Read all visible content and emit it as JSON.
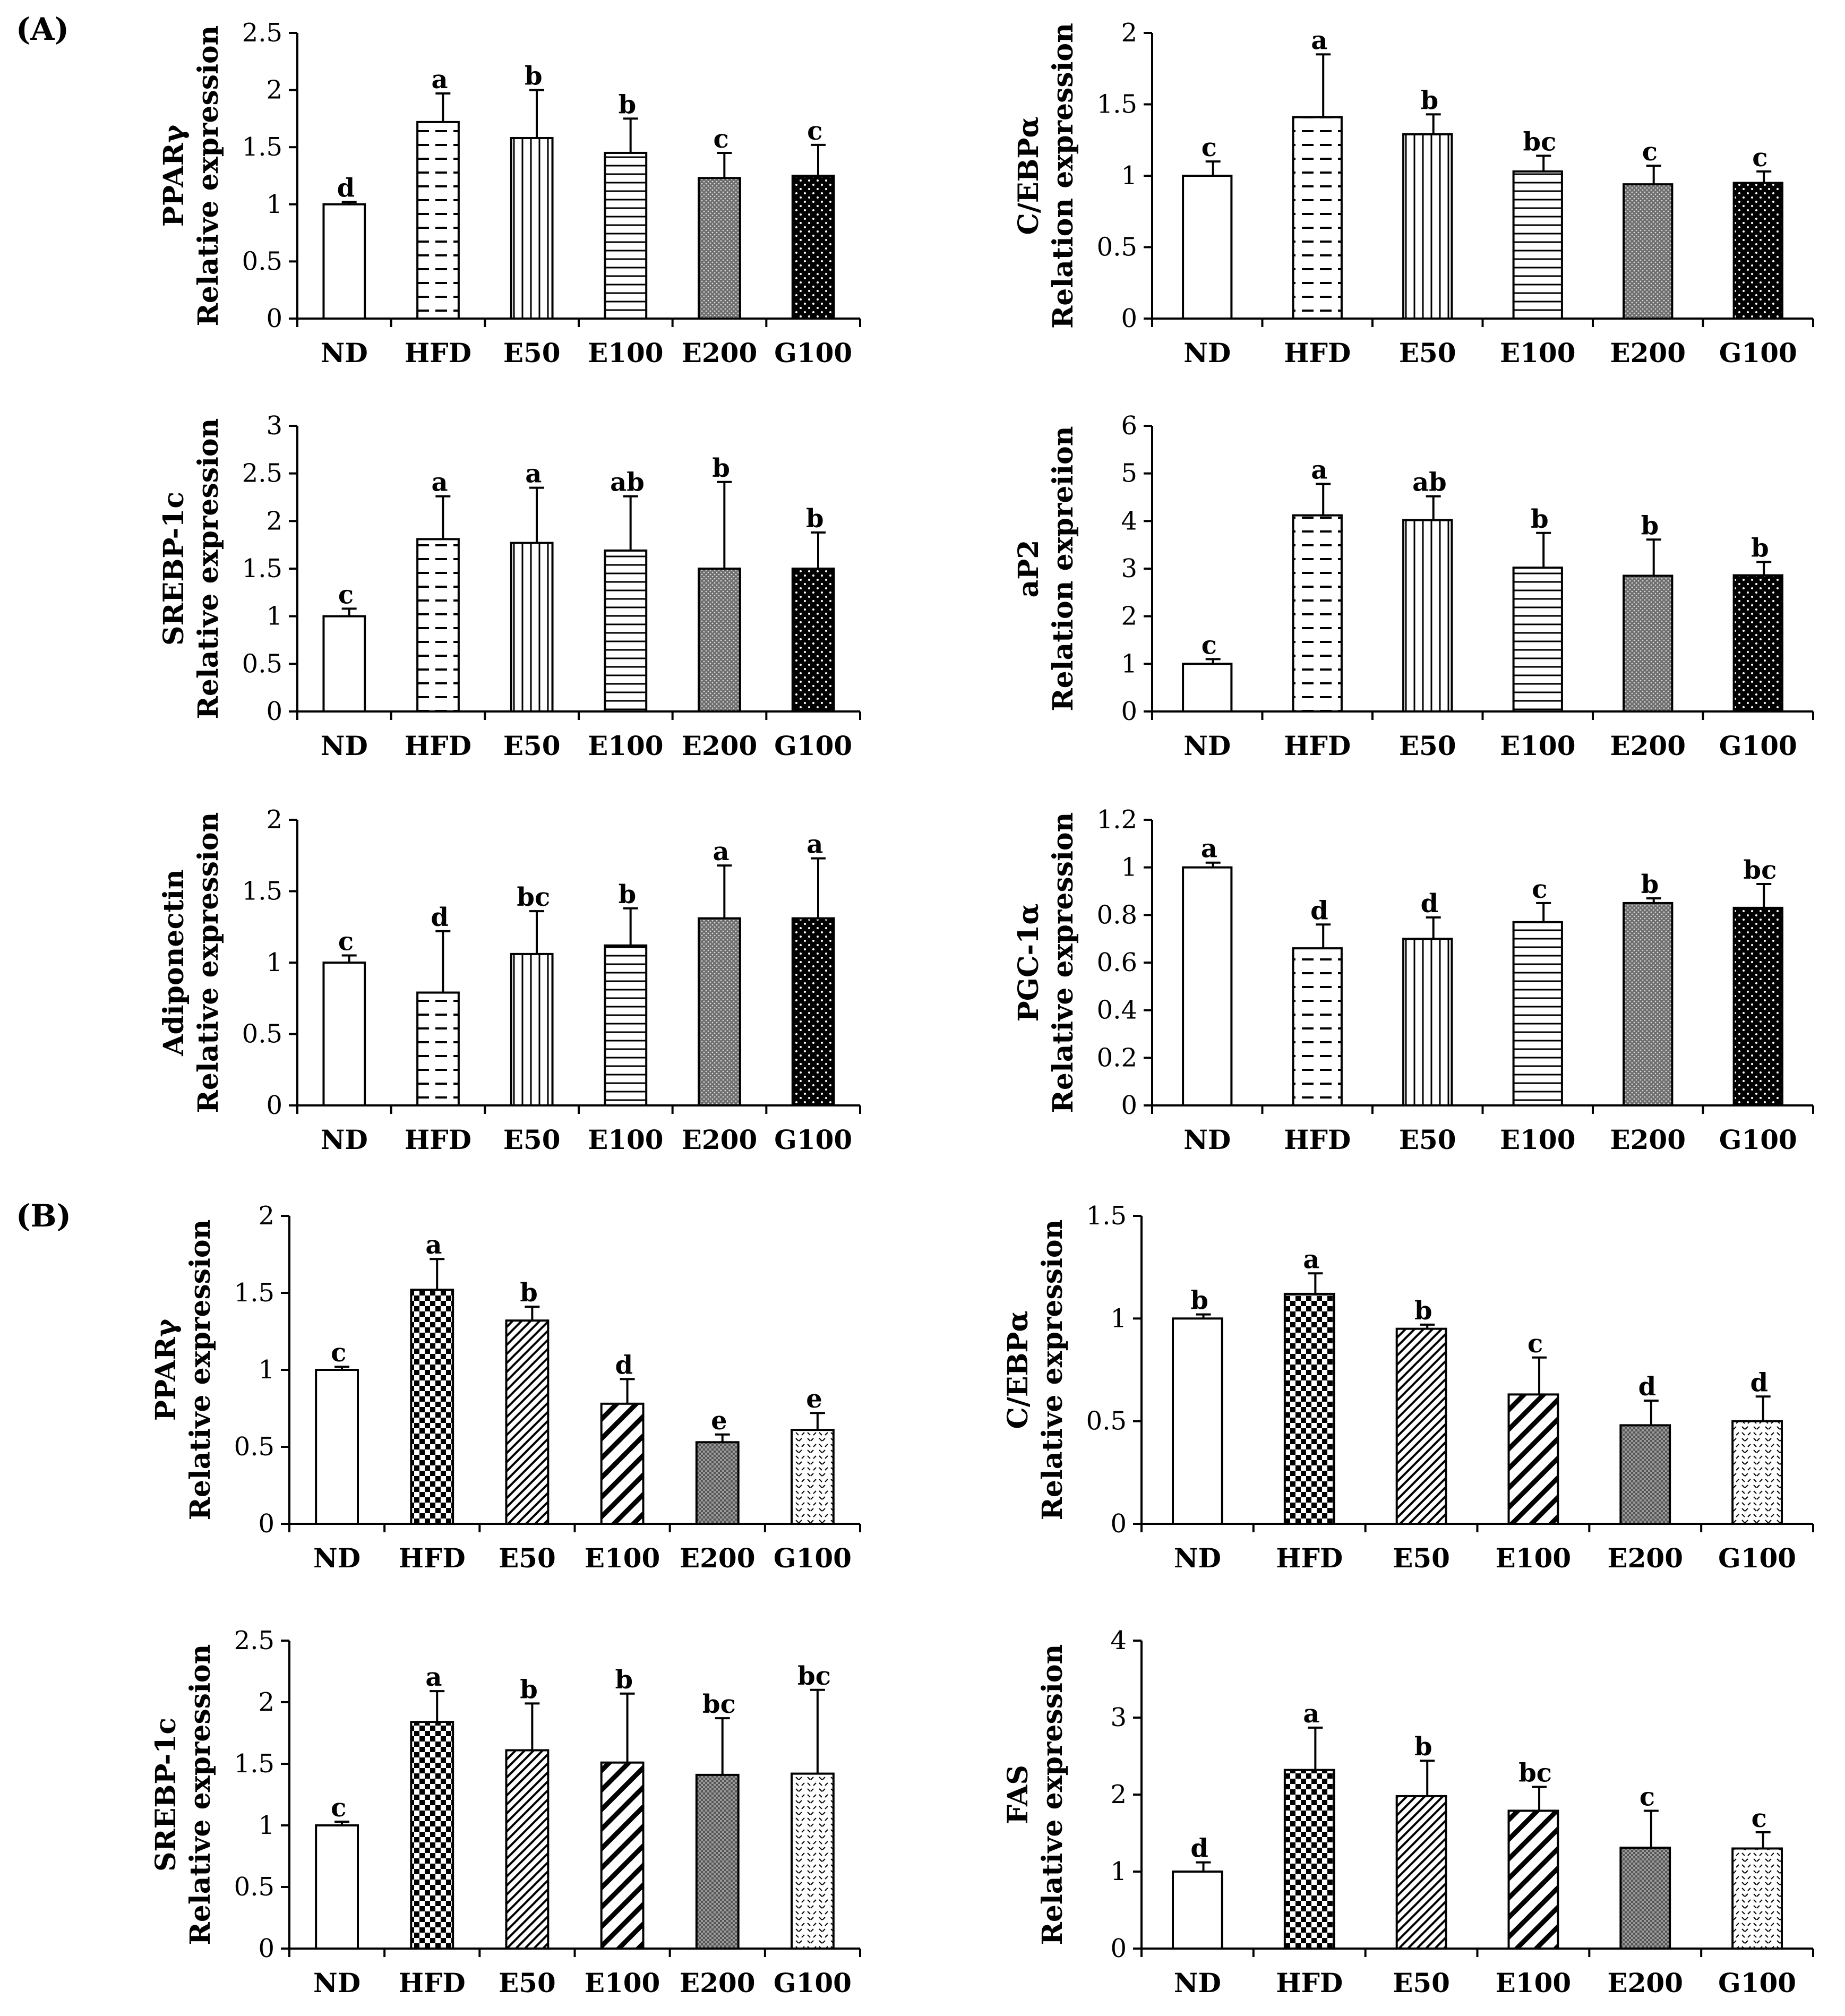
{
  "panel_labels": [
    "(A)",
    "(B)"
  ],
  "chart_data": [
    {
      "type": "bar",
      "group": "A",
      "gene": "PPARγ",
      "ylabel": "Relative expression",
      "yticks": [
        "0",
        "0.5",
        "1",
        "1.5",
        "2",
        "2.5"
      ],
      "ylim": [
        0,
        2.5
      ],
      "categories": [
        "ND",
        "HFD",
        "E50",
        "E100",
        "E200",
        "G100"
      ],
      "values": [
        1.0,
        1.72,
        1.58,
        1.45,
        1.23,
        1.25
      ],
      "errors": [
        0.02,
        0.25,
        0.42,
        0.3,
        0.22,
        0.27
      ],
      "letters": [
        "d",
        "a",
        "b",
        "b",
        "c",
        "c"
      ]
    },
    {
      "type": "bar",
      "group": "A",
      "gene": "C/EBPα",
      "ylabel": "Relation expression",
      "yticks": [
        "0",
        "0.5",
        "1",
        "1.5",
        "2"
      ],
      "ylim": [
        0,
        2
      ],
      "categories": [
        "ND",
        "HFD",
        "E50",
        "E100",
        "E200",
        "G100"
      ],
      "values": [
        1.0,
        1.41,
        1.29,
        1.03,
        0.94,
        0.95
      ],
      "errors": [
        0.1,
        0.44,
        0.14,
        0.11,
        0.13,
        0.08
      ],
      "letters": [
        "c",
        "a",
        "b",
        "bc",
        "c",
        "c"
      ]
    },
    {
      "type": "bar",
      "group": "A",
      "gene": "SREBP-1c",
      "ylabel": "Relative expression",
      "yticks": [
        "0",
        "0.5",
        "1",
        "1.5",
        "2",
        "2.5",
        "3"
      ],
      "ylim": [
        0,
        3
      ],
      "categories": [
        "ND",
        "HFD",
        "E50",
        "E100",
        "E200",
        "G100"
      ],
      "values": [
        1.0,
        1.81,
        1.77,
        1.69,
        1.5,
        1.5
      ],
      "errors": [
        0.08,
        0.45,
        0.58,
        0.57,
        0.91,
        0.38
      ],
      "letters": [
        "c",
        "a",
        "a",
        "ab",
        "b",
        "b"
      ]
    },
    {
      "type": "bar",
      "group": "A",
      "gene": "aP2",
      "ylabel": "Relation expreiion",
      "yticks": [
        "0",
        "1",
        "2",
        "3",
        "4",
        "5",
        "6"
      ],
      "ylim": [
        0,
        6
      ],
      "categories": [
        "ND",
        "HFD",
        "E50",
        "E100",
        "E200",
        "G100"
      ],
      "values": [
        1.0,
        4.12,
        4.02,
        3.02,
        2.85,
        2.86
      ],
      "errors": [
        0.1,
        0.66,
        0.5,
        0.73,
        0.76,
        0.28
      ],
      "letters": [
        "c",
        "a",
        "ab",
        "b",
        "b",
        "b"
      ]
    },
    {
      "type": "bar",
      "group": "A",
      "gene": "Adiponectin",
      "ylabel": "Relative expression",
      "yticks": [
        "0",
        "0.5",
        "1",
        "1.5",
        "2"
      ],
      "ylim": [
        0,
        2
      ],
      "categories": [
        "ND",
        "HFD",
        "E50",
        "E100",
        "E200",
        "G100"
      ],
      "values": [
        1.0,
        0.79,
        1.06,
        1.12,
        1.31,
        1.31
      ],
      "errors": [
        0.05,
        0.43,
        0.3,
        0.26,
        0.37,
        0.42
      ],
      "letters": [
        "c",
        "d",
        "bc",
        "b",
        "a",
        "a"
      ]
    },
    {
      "type": "bar",
      "group": "A",
      "gene": "PGC-1α",
      "ylabel": "Relative expression",
      "yticks": [
        "0",
        "0.2",
        "0.4",
        "0.6",
        "0.8",
        "1",
        "1.2"
      ],
      "ylim": [
        0,
        1.2
      ],
      "categories": [
        "ND",
        "HFD",
        "E50",
        "E100",
        "E200",
        "G100"
      ],
      "values": [
        1.0,
        0.66,
        0.7,
        0.77,
        0.85,
        0.83
      ],
      "errors": [
        0.02,
        0.1,
        0.09,
        0.08,
        0.02,
        0.1
      ],
      "letters": [
        "a",
        "d",
        "d",
        "c",
        "b",
        "bc"
      ]
    },
    {
      "type": "bar",
      "group": "B",
      "gene": "PPARγ",
      "ylabel": "Relative expression",
      "yticks": [
        "0",
        "0.5",
        "1",
        "1.5",
        "2"
      ],
      "ylim": [
        0,
        2
      ],
      "categories": [
        "ND",
        "HFD",
        "E50",
        "E100",
        "E200",
        "G100"
      ],
      "values": [
        1.0,
        1.52,
        1.32,
        0.78,
        0.53,
        0.61
      ],
      "errors": [
        0.02,
        0.2,
        0.09,
        0.16,
        0.05,
        0.11
      ],
      "letters": [
        "c",
        "a",
        "b",
        "d",
        "e",
        "e"
      ]
    },
    {
      "type": "bar",
      "group": "B",
      "gene": "C/EBPα",
      "ylabel": "Relative expression",
      "yticks": [
        "0",
        "0.5",
        "1",
        "1.5"
      ],
      "ylim": [
        0,
        1.5
      ],
      "categories": [
        "ND",
        "HFD",
        "E50",
        "E100",
        "E200",
        "G100"
      ],
      "values": [
        1.0,
        1.12,
        0.95,
        0.63,
        0.48,
        0.5
      ],
      "errors": [
        0.02,
        0.1,
        0.02,
        0.18,
        0.12,
        0.12
      ],
      "letters": [
        "b",
        "a",
        "b",
        "c",
        "d",
        "d"
      ]
    },
    {
      "type": "bar",
      "group": "B",
      "gene": "SREBP-1c",
      "ylabel": "Relative expression",
      "yticks": [
        "0",
        "0.5",
        "1",
        "1.5",
        "2",
        "2.5"
      ],
      "ylim": [
        0,
        2.5
      ],
      "categories": [
        "ND",
        "HFD",
        "E50",
        "E100",
        "E200",
        "G100"
      ],
      "values": [
        1.0,
        1.84,
        1.61,
        1.51,
        1.41,
        1.42
      ],
      "errors": [
        0.03,
        0.25,
        0.38,
        0.56,
        0.46,
        0.68
      ],
      "letters": [
        "c",
        "a",
        "b",
        "b",
        "bc",
        "bc"
      ]
    },
    {
      "type": "bar",
      "group": "B",
      "gene": "FAS",
      "ylabel": "Relative expression",
      "yticks": [
        "0",
        "1",
        "2",
        "3",
        "4"
      ],
      "ylim": [
        0,
        4
      ],
      "categories": [
        "ND",
        "HFD",
        "E50",
        "E100",
        "E200",
        "G100"
      ],
      "values": [
        1.0,
        2.32,
        1.98,
        1.79,
        1.31,
        1.3
      ],
      "errors": [
        0.12,
        0.55,
        0.46,
        0.31,
        0.48,
        0.21
      ],
      "letters": [
        "d",
        "a",
        "b",
        "bc",
        "c",
        "c"
      ]
    }
  ]
}
